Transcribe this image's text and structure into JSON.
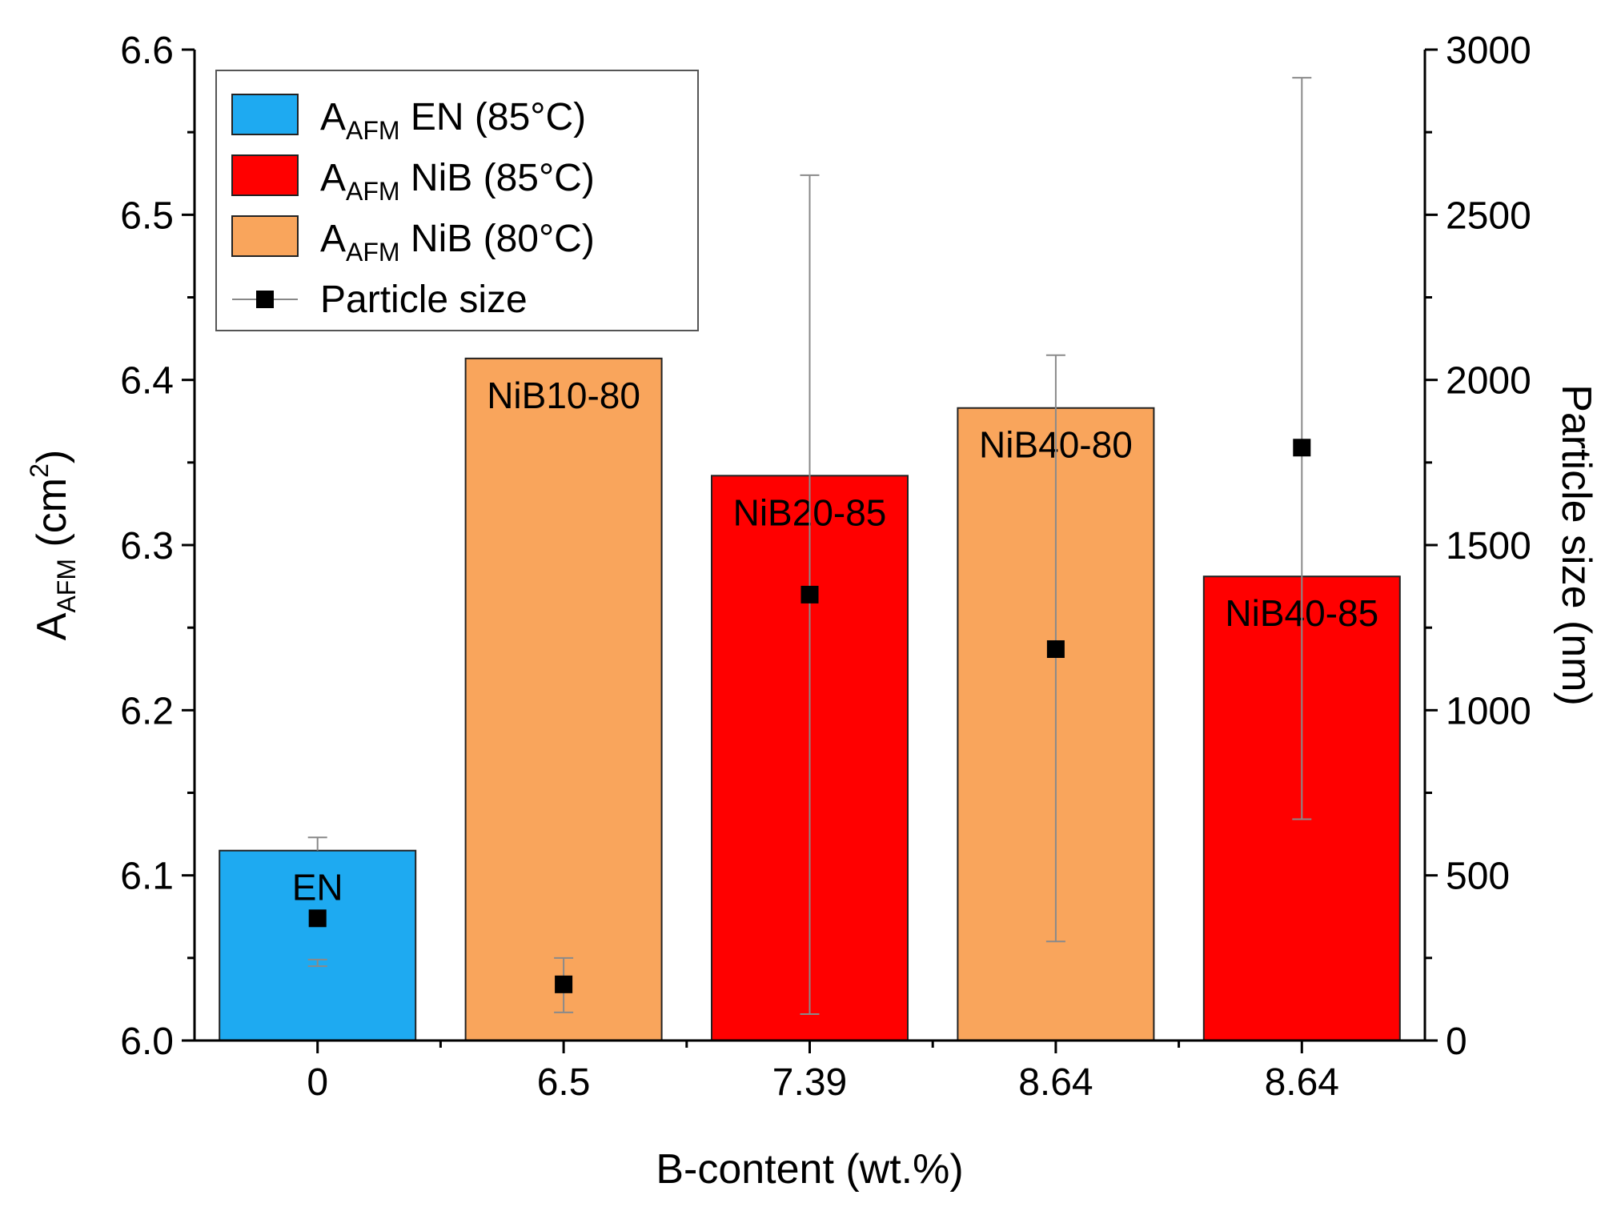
{
  "chart_data": {
    "type": "bar",
    "title": "",
    "xlabel": "B-content (wt.%)",
    "ylabel": {
      "main": "A",
      "sub": "AFM",
      "unit_open": " (cm",
      "sup": "2",
      "unit_close": ")"
    },
    "y2label": "Particle size (nm)",
    "ylim": [
      6.0,
      6.6
    ],
    "y2lim": [
      0,
      3000
    ],
    "yticks": [
      "6.0",
      "6.1",
      "6.2",
      "6.3",
      "6.4",
      "6.5",
      "6.6"
    ],
    "y2ticks": [
      "0",
      "500",
      "1000",
      "1500",
      "2000",
      "2500",
      "3000"
    ],
    "categories": [
      "0",
      "6.5",
      "7.39",
      "8.64",
      "8.64"
    ],
    "bars": [
      {
        "category": "0",
        "value": 6.115,
        "label": "EN",
        "color": "#1eaaf1",
        "series": "EN (85°C)"
      },
      {
        "category": "6.5",
        "value": 6.413,
        "label": "NiB10-80",
        "color": "#f9a55c",
        "series": "NiB (80°C)"
      },
      {
        "category": "7.39",
        "value": 6.342,
        "label": "NiB20-85",
        "color": "#ff0000",
        "series": "NiB (85°C)"
      },
      {
        "category": "8.64",
        "value": 6.383,
        "label": "NiB40-80",
        "color": "#f9a55c",
        "series": "NiB (80°C)"
      },
      {
        "category": "8.64",
        "value": 6.281,
        "label": "NiB40-85",
        "color": "#ff0000",
        "series": "NiB (85°C)"
      }
    ],
    "bar_error_tops": [
      6.123,
      null,
      null,
      null,
      null
    ],
    "particle_size": {
      "name": "Particle size",
      "values": [
        370,
        170,
        1350,
        1185,
        1795
      ],
      "err_low": [
        225,
        85,
        80,
        300,
        670
      ],
      "err_high": [
        245,
        250,
        2620,
        2075,
        2915
      ]
    },
    "legend": {
      "position": "top-left",
      "entries": [
        {
          "prefix": "A",
          "sub": "AFM",
          "suffix": " EN (85°C)",
          "color": "#1eaaf1",
          "kind": "bar"
        },
        {
          "prefix": "A",
          "sub": "AFM",
          "suffix": " NiB (85°C)",
          "color": "#ff0000",
          "kind": "bar"
        },
        {
          "prefix": "A",
          "sub": "AFM",
          "suffix": " NiB (80°C)",
          "color": "#f9a55c",
          "kind": "bar"
        },
        {
          "prefix": "",
          "sub": "",
          "suffix": "Particle size",
          "color": "#000000",
          "kind": "marker"
        }
      ]
    }
  }
}
